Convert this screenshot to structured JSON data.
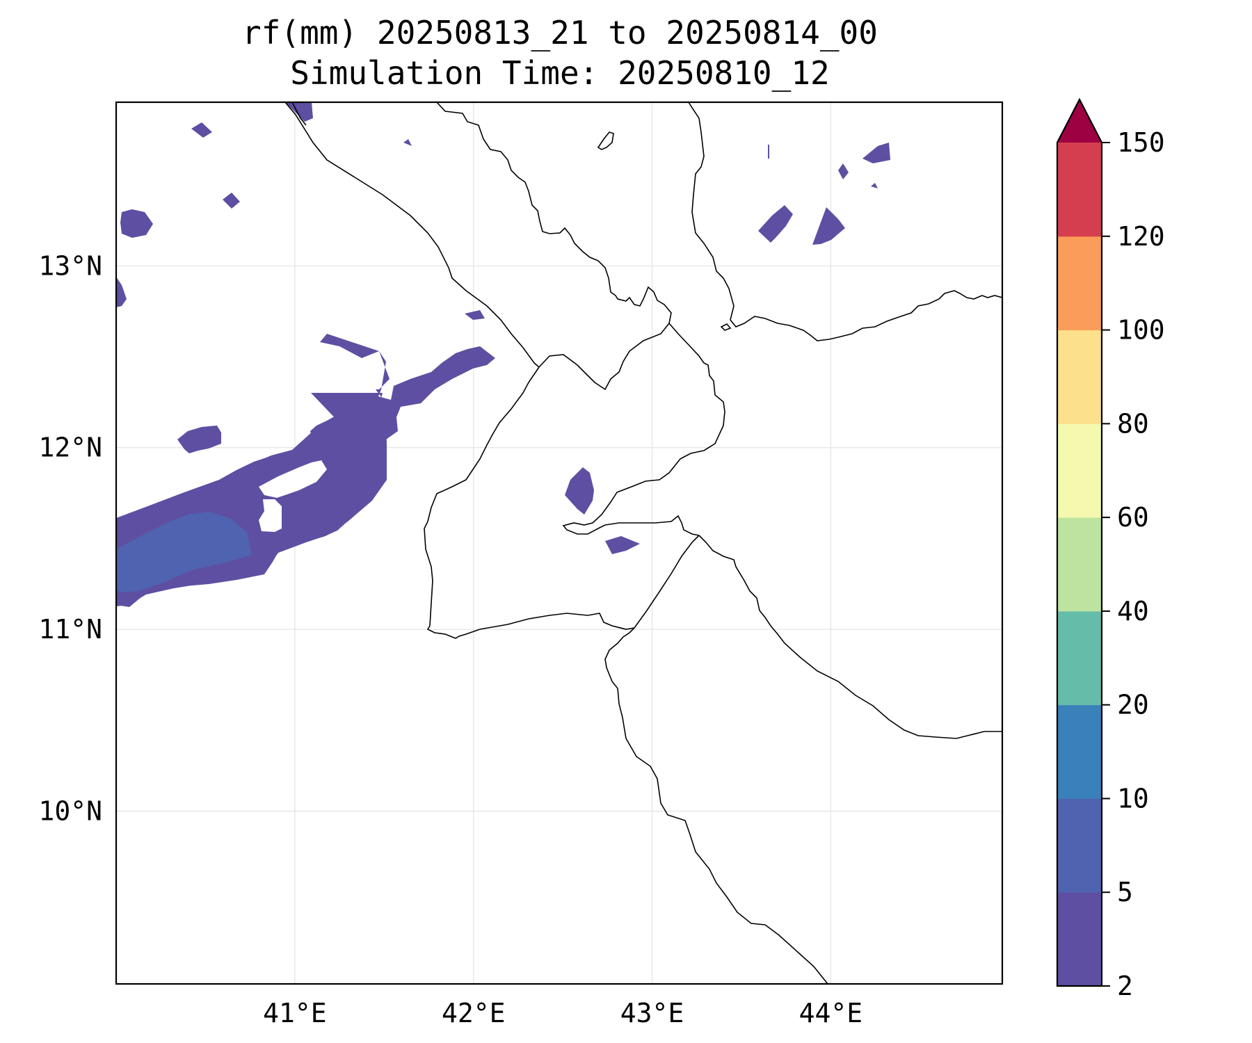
{
  "title": {
    "line1": "rf(mm) 20250813_21 to 20250814_00",
    "line2": "Simulation Time: 20250810_12"
  },
  "map": {
    "lon_range": [
      40.0,
      44.96
    ],
    "lat_range": [
      9.05,
      13.9
    ],
    "lon_ticks": [
      41,
      42,
      43,
      44
    ],
    "lat_ticks": [
      10,
      11,
      12,
      13
    ],
    "lon_tick_labels": [
      "41°E",
      "42°E",
      "43°E",
      "44°E"
    ],
    "lat_tick_labels": [
      "10°N",
      "11°N",
      "12°N",
      "13°N"
    ],
    "grid": true
  },
  "colorbar": {
    "levels": [
      2,
      5,
      10,
      20,
      40,
      60,
      80,
      100,
      120,
      150
    ],
    "tick_labels": [
      "2",
      "5",
      "10",
      "20",
      "40",
      "60",
      "80",
      "100",
      "120",
      "150"
    ],
    "colors": [
      "#5e4fa2",
      "#4f63b0",
      "#3a80b9",
      "#64bca9",
      "#bde3a0",
      "#f4f9af",
      "#fce08b",
      "#f99d59",
      "#d53e4f"
    ],
    "extend_color": "#9e0142",
    "extend": "max"
  }
}
